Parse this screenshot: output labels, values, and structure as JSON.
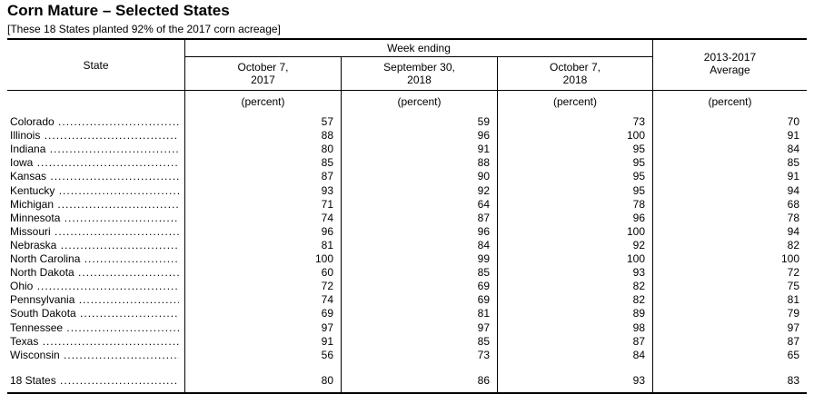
{
  "title": "Corn Mature – Selected States",
  "subtitle": "[These 18 States planted 92% of the 2017 corn acreage]",
  "header": {
    "state": "State",
    "week_ending": "Week ending",
    "columns": [
      {
        "line1": "October 7,",
        "line2": "2017"
      },
      {
        "line1": "September 30,",
        "line2": "2018"
      },
      {
        "line1": "October 7,",
        "line2": "2018"
      },
      {
        "line1": "2013-2017",
        "line2": "Average"
      }
    ],
    "unit": "(percent)"
  },
  "rows": [
    {
      "state": "Colorado",
      "v": [
        "57",
        "59",
        "73",
        "70"
      ]
    },
    {
      "state": "Illinois",
      "v": [
        "88",
        "96",
        "100",
        "91"
      ]
    },
    {
      "state": "Indiana",
      "v": [
        "80",
        "91",
        "95",
        "84"
      ]
    },
    {
      "state": "Iowa",
      "v": [
        "85",
        "88",
        "95",
        "85"
      ]
    },
    {
      "state": "Kansas",
      "v": [
        "87",
        "90",
        "95",
        "91"
      ]
    },
    {
      "state": "Kentucky",
      "v": [
        "93",
        "92",
        "95",
        "94"
      ]
    },
    {
      "state": "Michigan",
      "v": [
        "71",
        "64",
        "78",
        "68"
      ]
    },
    {
      "state": "Minnesota",
      "v": [
        "74",
        "87",
        "96",
        "78"
      ]
    },
    {
      "state": "Missouri",
      "v": [
        "96",
        "96",
        "100",
        "94"
      ]
    },
    {
      "state": "Nebraska",
      "v": [
        "81",
        "84",
        "92",
        "82"
      ]
    },
    {
      "state": "North Carolina",
      "v": [
        "100",
        "99",
        "100",
        "100"
      ]
    },
    {
      "state": "North Dakota",
      "v": [
        "60",
        "85",
        "93",
        "72"
      ]
    },
    {
      "state": "Ohio",
      "v": [
        "72",
        "69",
        "82",
        "75"
      ]
    },
    {
      "state": "Pennsylvania",
      "v": [
        "74",
        "69",
        "82",
        "81"
      ]
    },
    {
      "state": "South Dakota",
      "v": [
        "69",
        "81",
        "89",
        "79"
      ]
    },
    {
      "state": "Tennessee",
      "v": [
        "97",
        "97",
        "98",
        "97"
      ]
    },
    {
      "state": "Texas",
      "v": [
        "91",
        "85",
        "87",
        "87"
      ]
    },
    {
      "state": "Wisconsin",
      "v": [
        "56",
        "73",
        "84",
        "65"
      ]
    }
  ],
  "total": {
    "state": "18 States",
    "v": [
      "80",
      "86",
      "93",
      "83"
    ]
  }
}
